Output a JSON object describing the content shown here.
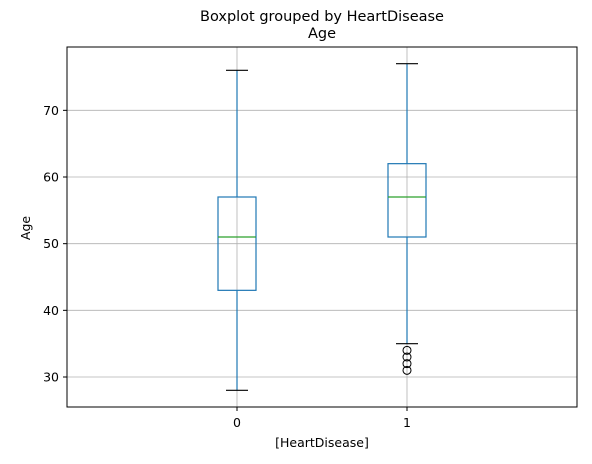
{
  "chart_data": {
    "type": "boxplot",
    "suptitle": "Boxplot grouped by HeartDisease",
    "title": "Age",
    "xlabel": "[HeartDisease]",
    "ylabel": "Age",
    "categories": [
      "0",
      "1"
    ],
    "ylim": [
      25.5,
      79.5
    ],
    "yticks": [
      30,
      40,
      50,
      60,
      70
    ],
    "grid": true,
    "boxes": [
      {
        "category": "0",
        "whisker_low": 28,
        "q1": 43,
        "median": 51,
        "q3": 57,
        "whisker_high": 76,
        "outliers": []
      },
      {
        "category": "1",
        "whisker_low": 35,
        "q1": 51,
        "median": 57,
        "q3": 62,
        "whisker_high": 77,
        "outliers": [
          31,
          32,
          33,
          34
        ]
      }
    ],
    "colors": {
      "box": "#1f77b4",
      "median": "#2ca02c",
      "grid": "#b0b0b0",
      "outlier_edge": "#000000"
    }
  }
}
